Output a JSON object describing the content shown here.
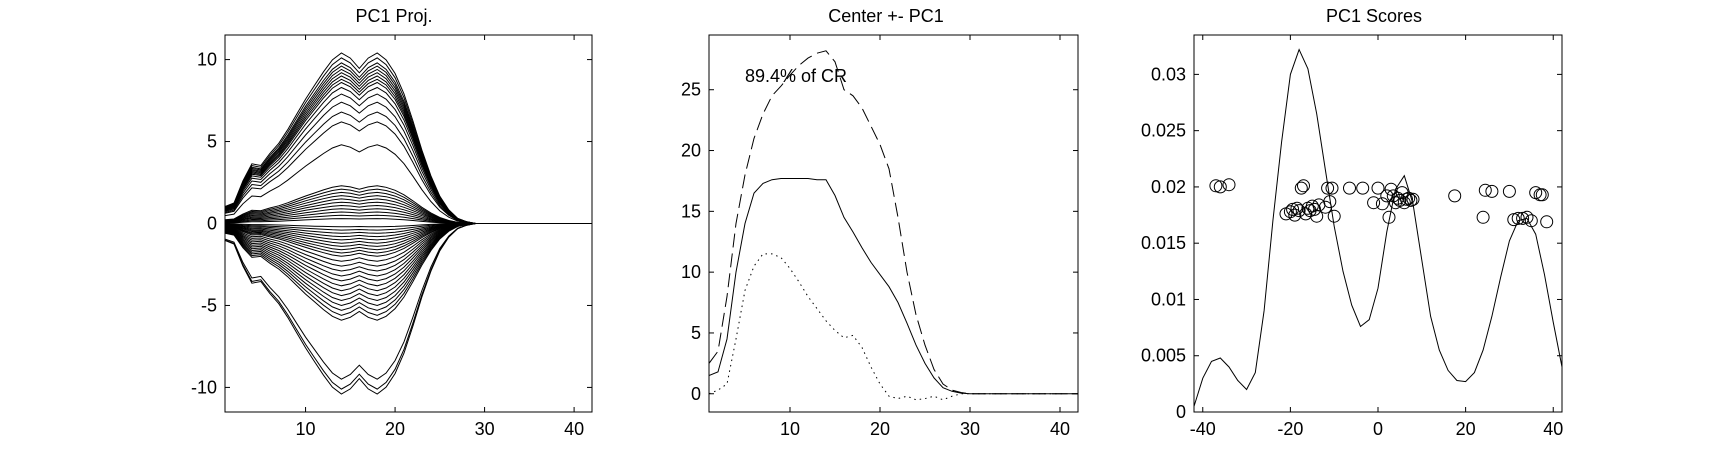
{
  "chart_data": [
    {
      "type": "line",
      "title": "PC1 Proj.",
      "xlabel": "",
      "ylabel": "",
      "xlim": [
        1,
        42
      ],
      "ylim": [
        -11.5,
        11.5
      ],
      "xticks": [
        10,
        20,
        30,
        40
      ],
      "yticks": [
        -10,
        -5,
        0,
        5,
        10
      ],
      "grid": false,
      "legend": "none",
      "description": "Family of curves symmetric about y=0; each curve is a scaled copy of a double-peaked profile (peaks near x=14 and x=18) that returns to 0 by x=30. Scale factors listed below (peak y value).",
      "profile_x": [
        1,
        2,
        3,
        4,
        5,
        6,
        7,
        8,
        9,
        10,
        11,
        12,
        13,
        14,
        15,
        16,
        17,
        18,
        19,
        20,
        21,
        22,
        23,
        24,
        25,
        26,
        27,
        28,
        29,
        30,
        31,
        32,
        42
      ],
      "profile_y": [
        0.1,
        0.12,
        0.25,
        0.35,
        0.34,
        0.41,
        0.47,
        0.55,
        0.64,
        0.73,
        0.81,
        0.89,
        0.96,
        1.0,
        0.97,
        0.91,
        0.97,
        1.0,
        0.96,
        0.88,
        0.76,
        0.6,
        0.43,
        0.28,
        0.16,
        0.08,
        0.03,
        0.01,
        0.0,
        0.0,
        0.0,
        0.0,
        0.0
      ],
      "scales": [
        10.4,
        10.1,
        9.8,
        9.6,
        9.4,
        9.2,
        9.0,
        8.8,
        8.6,
        8.3,
        7.9,
        7.4,
        6.8,
        6.2,
        4.8,
        2.3,
        2.1,
        1.9,
        1.7,
        1.5,
        1.3,
        1.1,
        0.9,
        0.7,
        0.5,
        0.3,
        -0.2,
        -0.4,
        -0.6,
        -0.8,
        -1.0,
        -1.2,
        -1.4,
        -1.6,
        -1.8,
        -2.0,
        -2.3,
        -2.6,
        -2.9,
        -3.2,
        -3.5,
        -3.8,
        -4.1,
        -4.4,
        -4.7,
        -5.0,
        -5.3,
        -5.6,
        -5.9,
        -9.5,
        -10.1,
        -10.4
      ]
    },
    {
      "type": "line",
      "title": "Center +- PC1",
      "xlabel": "",
      "ylabel": "",
      "xlim": [
        1,
        42
      ],
      "ylim": [
        -1.5,
        29.5
      ],
      "xticks": [
        10,
        20,
        30,
        40
      ],
      "yticks": [
        0,
        5,
        10,
        15,
        20,
        25
      ],
      "grid": false,
      "legend": "none",
      "annotation": "89.4% of CR",
      "series": [
        {
          "style": "dashed",
          "x": [
            1,
            2,
            3,
            4,
            5,
            6,
            7,
            8,
            9,
            10,
            11,
            12,
            13,
            14,
            15,
            16,
            17,
            18,
            19,
            20,
            21,
            22,
            23,
            24,
            25,
            26,
            27,
            28,
            29,
            30,
            31,
            32,
            42
          ],
          "y": [
            2.5,
            3.5,
            8.0,
            14.0,
            18.0,
            21.0,
            23.0,
            24.5,
            25.3,
            26.2,
            27.0,
            27.6,
            28.0,
            28.2,
            27.3,
            25.0,
            24.5,
            23.5,
            22.0,
            20.5,
            18.5,
            14.5,
            10.0,
            6.5,
            4.0,
            2.0,
            0.8,
            0.3,
            0.1,
            0.0,
            0.0,
            0.0,
            0.0
          ]
        },
        {
          "style": "solid",
          "x": [
            1,
            2,
            3,
            4,
            5,
            6,
            7,
            8,
            9,
            10,
            11,
            12,
            13,
            14,
            15,
            16,
            17,
            18,
            19,
            20,
            21,
            22,
            23,
            24,
            25,
            26,
            27,
            28,
            29,
            30,
            31,
            32,
            42
          ],
          "y": [
            1.5,
            1.8,
            4.5,
            10.0,
            14.0,
            16.5,
            17.3,
            17.6,
            17.7,
            17.7,
            17.7,
            17.7,
            17.6,
            17.6,
            16.3,
            14.5,
            13.3,
            12.0,
            10.8,
            9.8,
            8.8,
            7.5,
            5.8,
            4.0,
            2.5,
            1.3,
            0.5,
            0.2,
            0.05,
            0.0,
            0.0,
            0.0,
            0.0
          ]
        },
        {
          "style": "dotted",
          "x": [
            1,
            2,
            3,
            4,
            5,
            6,
            7,
            8,
            9,
            10,
            11,
            12,
            13,
            14,
            15,
            16,
            17,
            18,
            19,
            20,
            21,
            22,
            23,
            24,
            25,
            26,
            27,
            28,
            29,
            30,
            31,
            42
          ],
          "y": [
            0.0,
            0.3,
            0.8,
            4.5,
            8.5,
            10.5,
            11.5,
            11.5,
            11.2,
            10.3,
            9.2,
            8.0,
            7.0,
            6.0,
            5.2,
            4.6,
            4.8,
            3.8,
            2.2,
            0.8,
            -0.2,
            -0.4,
            -0.2,
            -0.5,
            -0.4,
            -0.2,
            -0.5,
            -0.2,
            0.0,
            0.0,
            0.0,
            0.0
          ]
        }
      ]
    },
    {
      "type": "line",
      "title": "PC1 Scores",
      "xlabel": "",
      "ylabel": "",
      "xlim": [
        -42,
        42
      ],
      "ylim": [
        0,
        0.0335
      ],
      "xticks": [
        -40,
        -20,
        0,
        20,
        40
      ],
      "yticks": [
        0,
        0.005,
        0.01,
        0.015,
        0.02,
        0.025,
        0.03
      ],
      "grid": false,
      "legend": "none",
      "series": [
        {
          "style": "solid",
          "x": [
            -42,
            -40,
            -38,
            -36,
            -34,
            -32,
            -30,
            -28,
            -26,
            -24,
            -22,
            -20,
            -18,
            -16,
            -14,
            -12,
            -10,
            -8,
            -6,
            -4,
            -2,
            0,
            2,
            4,
            6,
            8,
            10,
            12,
            14,
            16,
            18,
            20,
            22,
            24,
            26,
            28,
            30,
            32,
            34,
            36,
            38,
            40,
            42
          ],
          "y": [
            0.0005,
            0.003,
            0.0045,
            0.0048,
            0.004,
            0.0028,
            0.002,
            0.0035,
            0.009,
            0.017,
            0.024,
            0.03,
            0.0322,
            0.0305,
            0.0265,
            0.0215,
            0.0165,
            0.0125,
            0.0095,
            0.0076,
            0.0082,
            0.011,
            0.016,
            0.0198,
            0.021,
            0.0185,
            0.0135,
            0.0085,
            0.0055,
            0.0037,
            0.0028,
            0.0027,
            0.0035,
            0.0055,
            0.0085,
            0.012,
            0.0152,
            0.017,
            0.0172,
            0.0158,
            0.0122,
            0.008,
            0.004
          ]
        },
        {
          "style": "circles",
          "x": [
            -37,
            -36,
            -34,
            -21,
            -20,
            -19.5,
            -19,
            -18.5,
            -18,
            -17.5,
            -17,
            -16.5,
            -16,
            -15.5,
            -15,
            -14.5,
            -14,
            -13.5,
            -12,
            -11.5,
            -11,
            -10,
            -10.5,
            -6.5,
            -3.5,
            -1,
            0,
            1,
            2,
            2.5,
            3,
            3.5,
            4,
            4.5,
            5,
            5.5,
            6,
            6.5,
            7,
            7.5,
            8,
            17.5,
            24,
            24.5,
            26,
            30,
            31,
            32,
            33,
            34,
            35,
            36,
            37,
            37.5,
            38.5
          ],
          "y": [
            0.0201,
            0.02,
            0.0202,
            0.0176,
            0.0178,
            0.018,
            0.0175,
            0.0181,
            0.0179,
            0.0199,
            0.0201,
            0.0176,
            0.0181,
            0.0179,
            0.0183,
            0.018,
            0.0174,
            0.0184,
            0.0182,
            0.0199,
            0.0187,
            0.0174,
            0.0199,
            0.0199,
            0.0199,
            0.0186,
            0.0199,
            0.0185,
            0.0192,
            0.0173,
            0.0198,
            0.0192,
            0.0186,
            0.019,
            0.0188,
            0.0195,
            0.0186,
            0.0189,
            0.019,
            0.0188,
            0.0189,
            0.0192,
            0.0173,
            0.0197,
            0.0196,
            0.0196,
            0.0171,
            0.0172,
            0.0172,
            0.0173,
            0.017,
            0.0195,
            0.0193,
            0.0193,
            0.0169
          ]
        }
      ]
    }
  ]
}
